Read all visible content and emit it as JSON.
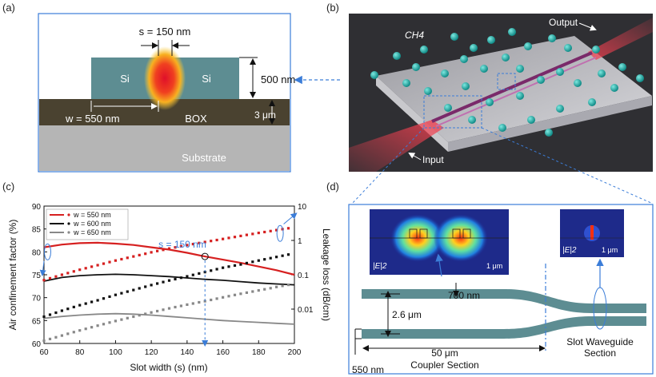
{
  "panels": {
    "a": {
      "label": "(a)",
      "slot_label": "s = 150 nm",
      "left_si": "Si",
      "right_si": "Si",
      "height_label": "500 nm",
      "width_label": "w = 550 nm",
      "box_label": "BOX",
      "box_thickness_label": "3 μm",
      "substrate_label": "Substrate"
    },
    "b": {
      "label": "(b)",
      "gas_label": "CH4",
      "output_label": "Output",
      "input_label": "Input"
    },
    "c": {
      "label": "(c)"
    },
    "d": {
      "label": "(d)",
      "field_label_left": "|E|2",
      "scale_left": "1 μm",
      "field_label_right": "|E|2",
      "scale_right": "1 μm",
      "gap_label": "700 nm",
      "separation_label": "2.6 μm",
      "length_label": "50 μm",
      "coupler_label": "Coupler Section",
      "slot_section_line1": "Slot Waveguide",
      "slot_section_line2": "Section",
      "width_label": "550 nm"
    }
  },
  "chart_data": {
    "type": "line",
    "xlabel": "Slot width (s) (nm)",
    "ylabel_left": "Air confinement factor (%)",
    "ylabel_right": "Leakage loss (dB/cm)",
    "xlim": [
      60,
      200
    ],
    "ylim": [
      60,
      90
    ],
    "y2_log_range": [
      0.001,
      10
    ],
    "x_ticks": [
      60,
      80,
      100,
      120,
      140,
      160,
      180,
      200
    ],
    "y_ticks": [
      60,
      65,
      70,
      75,
      80,
      85,
      90
    ],
    "y2_ticks": [
      0.01,
      0.1,
      1,
      10
    ],
    "y2_tick_labels": [
      "0.01",
      "0.1",
      "1",
      "10"
    ],
    "annotation": "s = 150 nm",
    "annotation_point": {
      "x": 150,
      "y": 79
    },
    "legend": [
      "w = 550 nm",
      "w = 600 nm",
      "w = 650 nm"
    ],
    "series_confinement": [
      {
        "name": "w = 550 nm",
        "color": "#d62020",
        "x": [
          60,
          70,
          80,
          90,
          100,
          110,
          120,
          130,
          140,
          150,
          160,
          170,
          180,
          190,
          200
        ],
        "y": [
          81,
          81.6,
          81.9,
          82,
          81.8,
          81.5,
          81,
          80.5,
          79.8,
          79,
          78.3,
          77.6,
          76.8,
          76,
          75
        ]
      },
      {
        "name": "w = 600 nm",
        "color": "#111111",
        "x": [
          60,
          70,
          80,
          90,
          100,
          110,
          120,
          130,
          140,
          150,
          160,
          170,
          180,
          190,
          200
        ],
        "y": [
          73.6,
          74.4,
          74.8,
          75,
          75.1,
          75,
          74.8,
          74.6,
          74.3,
          74,
          73.8,
          73.5,
          73.2,
          73,
          72.8
        ]
      },
      {
        "name": "w = 650 nm",
        "color": "#888888",
        "x": [
          60,
          70,
          80,
          90,
          100,
          110,
          120,
          130,
          140,
          150,
          160,
          170,
          180,
          190,
          200
        ],
        "y": [
          65.5,
          65.9,
          66.2,
          66.4,
          66.5,
          66.4,
          66.2,
          65.9,
          65.6,
          65.3,
          65,
          64.8,
          64.6,
          64.4,
          64.2
        ]
      }
    ],
    "series_loss": [
      {
        "name": "w = 550 nm",
        "color": "#d62020",
        "x": [
          60,
          70,
          80,
          90,
          100,
          110,
          120,
          130,
          140,
          150,
          160,
          170,
          180,
          190,
          200
        ],
        "y": [
          0.07,
          0.1,
          0.14,
          0.19,
          0.26,
          0.34,
          0.45,
          0.58,
          0.73,
          0.9,
          1.1,
          1.35,
          1.65,
          2.0,
          2.4
        ]
      },
      {
        "name": "w = 600 nm",
        "color": "#111111",
        "x": [
          60,
          70,
          80,
          90,
          100,
          110,
          120,
          130,
          140,
          150,
          160,
          170,
          180,
          190,
          200
        ],
        "y": [
          0.006,
          0.009,
          0.013,
          0.018,
          0.026,
          0.036,
          0.05,
          0.068,
          0.09,
          0.12,
          0.16,
          0.2,
          0.26,
          0.33,
          0.42
        ]
      },
      {
        "name": "w = 650 nm",
        "color": "#888888",
        "x": [
          60,
          70,
          80,
          90,
          100,
          110,
          120,
          130,
          140,
          150,
          160,
          170,
          180,
          190,
          200
        ],
        "y": [
          0.0012,
          0.0017,
          0.0024,
          0.0033,
          0.0045,
          0.006,
          0.008,
          0.0105,
          0.0135,
          0.017,
          0.022,
          0.028,
          0.035,
          0.044,
          0.055
        ]
      }
    ]
  }
}
